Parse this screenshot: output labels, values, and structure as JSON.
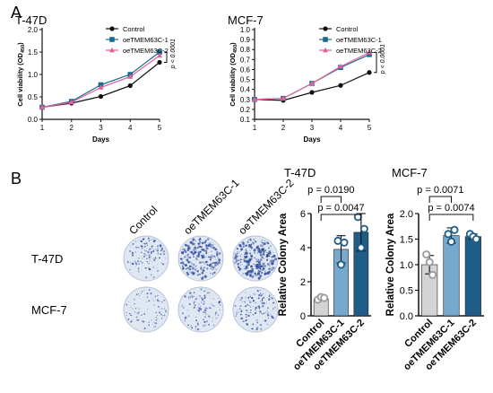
{
  "panel_labels": {
    "a": "A",
    "b": "B"
  },
  "colors": {
    "control": "#111111",
    "oe1": "#1b6a8f",
    "oe2": "#e65f9d",
    "bar_control": "#d4d4d4",
    "bar_oe1": "#76a9cd",
    "bar_oe2": "#1f5c86",
    "dish_bg": "#dfe7f3",
    "dish_dot": "#2e4a9a"
  },
  "images": {
    "col_labels": [
      "Control",
      "oeTMEM63C-1",
      "oeTMEM63C-2"
    ],
    "row_labels": [
      "T-47D",
      "MCF-7"
    ],
    "densities": [
      [
        0.35,
        0.75,
        0.9
      ],
      [
        0.18,
        0.3,
        0.4
      ]
    ]
  },
  "chart_data": [
    {
      "type": "line",
      "title": "T-47D",
      "xlabel": "Days",
      "ylabel": "Cell viability (OD",
      "ylabel_sub": "450",
      "ylabel_close": ")",
      "x": [
        1,
        2,
        3,
        4,
        5
      ],
      "xlim": [
        1,
        5
      ],
      "ylim": [
        0,
        2.0
      ],
      "yticks": [
        "0.0",
        "0.5",
        "1.0",
        "1.5",
        "2.0"
      ],
      "legend": "top-left",
      "annotation": "p < 0.0001",
      "series": [
        {
          "name": "Control",
          "values": [
            0.27,
            0.36,
            0.51,
            0.75,
            1.27
          ]
        },
        {
          "name": "oeTMEM63C-1",
          "values": [
            0.27,
            0.4,
            0.77,
            1.0,
            1.5
          ]
        },
        {
          "name": "oeTMEM63C-2",
          "values": [
            0.27,
            0.38,
            0.71,
            0.95,
            1.42
          ]
        }
      ]
    },
    {
      "type": "line",
      "title": "MCF-7",
      "xlabel": "Days",
      "ylabel": "Cell viability (OD",
      "ylabel_sub": "450",
      "ylabel_close": ")",
      "x": [
        1,
        2,
        3,
        4,
        5
      ],
      "xlim": [
        1,
        5
      ],
      "ylim": [
        0.1,
        1.0
      ],
      "yticks": [
        "0.1",
        "0.2",
        "0.3",
        "0.4",
        "0.5",
        "0.6",
        "0.7",
        "0.8",
        "0.9",
        "1.0"
      ],
      "legend": "top-left",
      "annotation": "p < 0.0001",
      "series": [
        {
          "name": "Control",
          "values": [
            0.3,
            0.29,
            0.37,
            0.44,
            0.57
          ]
        },
        {
          "name": "oeTMEM63C-1",
          "values": [
            0.3,
            0.31,
            0.46,
            0.62,
            0.75
          ]
        },
        {
          "name": "oeTMEM63C-2",
          "values": [
            0.3,
            0.31,
            0.46,
            0.63,
            0.77
          ]
        }
      ]
    },
    {
      "type": "bar",
      "title": "T-47D",
      "ylabel": "Relative Colony Area",
      "categories": [
        "Control",
        "oeTMEM63C-1",
        "oeTMEM63C-2"
      ],
      "values": [
        1.0,
        3.9,
        4.9
      ],
      "errors": [
        0.1,
        0.8,
        1.1
      ],
      "points": [
        [
          0.95,
          1.1,
          1.05
        ],
        [
          4.4,
          3.0,
          4.3
        ],
        [
          5.8,
          4.0,
          5.1
        ]
      ],
      "ylim": [
        0,
        6
      ],
      "yticks": [
        "0",
        "2",
        "4",
        "6"
      ],
      "comparisons": [
        {
          "from": 0,
          "to": 1,
          "label": "p = 0.0190"
        },
        {
          "from": 0,
          "to": 2,
          "label": "p = 0.0047"
        }
      ]
    },
    {
      "type": "bar",
      "title": "MCF-7",
      "ylabel": "Relative Colony Area",
      "categories": [
        "Control",
        "oeTMEM63C-1",
        "oeTMEM63C-2"
      ],
      "values": [
        1.0,
        1.57,
        1.55
      ],
      "errors": [
        0.18,
        0.15,
        0.05
      ],
      "points": [
        [
          1.2,
          1.05,
          0.8
        ],
        [
          1.6,
          1.45,
          1.68
        ],
        [
          1.6,
          1.55,
          1.5
        ]
      ],
      "ylim": [
        0,
        2.0
      ],
      "yticks": [
        "0.0",
        "0.5",
        "1.0",
        "1.5",
        "2.0"
      ],
      "comparisons": [
        {
          "from": 0,
          "to": 1,
          "label": "p = 0.0071"
        },
        {
          "from": 0,
          "to": 2,
          "label": "p = 0.0074"
        }
      ]
    }
  ]
}
